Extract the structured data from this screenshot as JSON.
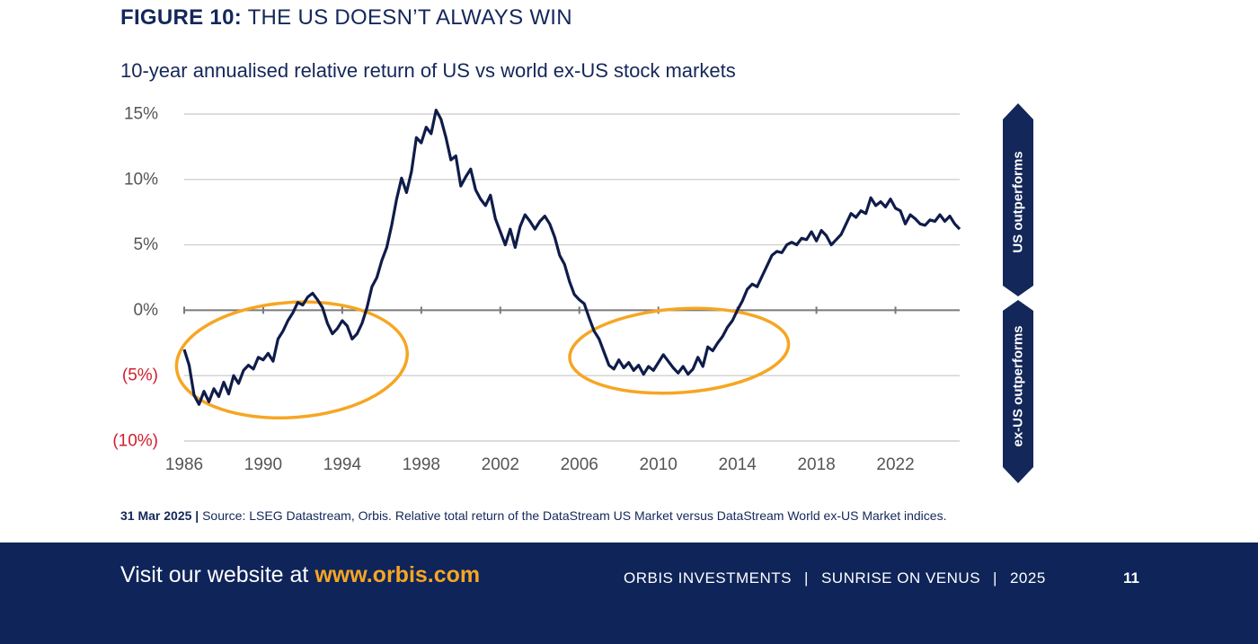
{
  "figure": {
    "number": "FIGURE 10:",
    "title": "THE US DOESN’T ALWAYS WIN",
    "subtitle": "10-year annualised relative return of US vs world ex-US stock markets"
  },
  "colors": {
    "navy": "#14275a",
    "line": "#0f1c4a",
    "grid": "#d0d0d0",
    "negative_label": "#d0202e",
    "highlight": "#f6a623",
    "footer_bg": "#0f2459"
  },
  "side_labels": {
    "up": "US outperforms",
    "down": "ex-US outperforms"
  },
  "chart_data": {
    "type": "line",
    "title": "10-year annualised relative return of US vs world ex-US stock markets",
    "xlabel": "",
    "ylabel": "",
    "xlim": [
      1986,
      2025.25
    ],
    "ylim": [
      -10,
      15
    ],
    "x_ticks": [
      1986,
      1990,
      1994,
      1998,
      2002,
      2006,
      2010,
      2014,
      2018,
      2022
    ],
    "x_tick_labels": [
      "1986",
      "1990",
      "1994",
      "1998",
      "2002",
      "2006",
      "2010",
      "2014",
      "2018",
      "2022"
    ],
    "y_ticks": [
      15,
      10,
      5,
      0,
      -5,
      -10
    ],
    "y_tick_labels": [
      "15%",
      "10%",
      "5%",
      "0%",
      "(5%)",
      "(10%)"
    ],
    "grid": true,
    "highlights": [
      {
        "x_range": [
          1985.6,
          1997.3
        ],
        "y_range": [
          -8.2,
          0.6
        ]
      },
      {
        "x_range": [
          2005.5,
          2016.6
        ],
        "y_range": [
          -6.3,
          0.1
        ]
      }
    ],
    "series": [
      {
        "values": [
          [
            1986.0,
            -3.0
          ],
          [
            1986.25,
            -4.2
          ],
          [
            1986.5,
            -6.5
          ],
          [
            1986.75,
            -7.2
          ],
          [
            1987.0,
            -6.2
          ],
          [
            1987.25,
            -7.0
          ],
          [
            1987.5,
            -6.0
          ],
          [
            1987.75,
            -6.6
          ],
          [
            1988.0,
            -5.5
          ],
          [
            1988.25,
            -6.4
          ],
          [
            1988.5,
            -5.0
          ],
          [
            1988.75,
            -5.6
          ],
          [
            1989.0,
            -4.6
          ],
          [
            1989.25,
            -4.2
          ],
          [
            1989.5,
            -4.5
          ],
          [
            1989.75,
            -3.6
          ],
          [
            1990.0,
            -3.8
          ],
          [
            1990.25,
            -3.3
          ],
          [
            1990.5,
            -3.9
          ],
          [
            1990.75,
            -2.2
          ],
          [
            1991.0,
            -1.6
          ],
          [
            1991.25,
            -0.8
          ],
          [
            1991.5,
            -0.2
          ],
          [
            1991.75,
            0.6
          ],
          [
            1992.0,
            0.4
          ],
          [
            1992.25,
            1.0
          ],
          [
            1992.5,
            1.3
          ],
          [
            1992.75,
            0.8
          ],
          [
            1993.0,
            0.2
          ],
          [
            1993.25,
            -1.0
          ],
          [
            1993.5,
            -1.8
          ],
          [
            1993.75,
            -1.4
          ],
          [
            1994.0,
            -0.8
          ],
          [
            1994.25,
            -1.2
          ],
          [
            1994.5,
            -2.2
          ],
          [
            1994.75,
            -1.8
          ],
          [
            1995.0,
            -1.0
          ],
          [
            1995.25,
            0.2
          ],
          [
            1995.5,
            1.8
          ],
          [
            1995.75,
            2.5
          ],
          [
            1996.0,
            3.8
          ],
          [
            1996.25,
            4.8
          ],
          [
            1996.5,
            6.5
          ],
          [
            1996.75,
            8.5
          ],
          [
            1997.0,
            10.1
          ],
          [
            1997.25,
            9.0
          ],
          [
            1997.5,
            10.6
          ],
          [
            1997.75,
            13.2
          ],
          [
            1998.0,
            12.8
          ],
          [
            1998.25,
            14.0
          ],
          [
            1998.5,
            13.5
          ],
          [
            1998.75,
            15.3
          ],
          [
            1999.0,
            14.6
          ],
          [
            1999.25,
            13.2
          ],
          [
            1999.5,
            11.5
          ],
          [
            1999.75,
            11.8
          ],
          [
            2000.0,
            9.5
          ],
          [
            2000.25,
            10.2
          ],
          [
            2000.5,
            10.8
          ],
          [
            2000.75,
            9.2
          ],
          [
            2001.0,
            8.5
          ],
          [
            2001.25,
            8.0
          ],
          [
            2001.5,
            8.8
          ],
          [
            2001.75,
            7.0
          ],
          [
            2002.0,
            6.0
          ],
          [
            2002.25,
            5.0
          ],
          [
            2002.5,
            6.2
          ],
          [
            2002.75,
            4.8
          ],
          [
            2003.0,
            6.4
          ],
          [
            2003.25,
            7.3
          ],
          [
            2003.5,
            6.8
          ],
          [
            2003.75,
            6.2
          ],
          [
            2004.0,
            6.8
          ],
          [
            2004.25,
            7.2
          ],
          [
            2004.5,
            6.6
          ],
          [
            2004.75,
            5.6
          ],
          [
            2005.0,
            4.2
          ],
          [
            2005.25,
            3.5
          ],
          [
            2005.5,
            2.2
          ],
          [
            2005.75,
            1.2
          ],
          [
            2006.0,
            0.8
          ],
          [
            2006.25,
            0.5
          ],
          [
            2006.5,
            -0.6
          ],
          [
            2006.75,
            -1.6
          ],
          [
            2007.0,
            -2.2
          ],
          [
            2007.25,
            -3.2
          ],
          [
            2007.5,
            -4.2
          ],
          [
            2007.75,
            -4.5
          ],
          [
            2008.0,
            -3.8
          ],
          [
            2008.25,
            -4.4
          ],
          [
            2008.5,
            -4.0
          ],
          [
            2008.75,
            -4.6
          ],
          [
            2009.0,
            -4.2
          ],
          [
            2009.25,
            -4.9
          ],
          [
            2009.5,
            -4.3
          ],
          [
            2009.75,
            -4.6
          ],
          [
            2010.0,
            -4.0
          ],
          [
            2010.25,
            -3.4
          ],
          [
            2010.5,
            -3.9
          ],
          [
            2010.75,
            -4.4
          ],
          [
            2011.0,
            -4.8
          ],
          [
            2011.25,
            -4.3
          ],
          [
            2011.5,
            -4.9
          ],
          [
            2011.75,
            -4.5
          ],
          [
            2012.0,
            -3.6
          ],
          [
            2012.25,
            -4.3
          ],
          [
            2012.5,
            -2.8
          ],
          [
            2012.75,
            -3.1
          ],
          [
            2013.0,
            -2.5
          ],
          [
            2013.25,
            -2.0
          ],
          [
            2013.5,
            -1.3
          ],
          [
            2013.75,
            -0.8
          ],
          [
            2014.0,
            0.0
          ],
          [
            2014.25,
            0.7
          ],
          [
            2014.5,
            1.6
          ],
          [
            2014.75,
            2.0
          ],
          [
            2015.0,
            1.8
          ],
          [
            2015.25,
            2.6
          ],
          [
            2015.5,
            3.4
          ],
          [
            2015.75,
            4.2
          ],
          [
            2016.0,
            4.5
          ],
          [
            2016.25,
            4.4
          ],
          [
            2016.5,
            5.0
          ],
          [
            2016.75,
            5.2
          ],
          [
            2017.0,
            5.0
          ],
          [
            2017.25,
            5.5
          ],
          [
            2017.5,
            5.4
          ],
          [
            2017.75,
            6.0
          ],
          [
            2018.0,
            5.3
          ],
          [
            2018.25,
            6.1
          ],
          [
            2018.5,
            5.7
          ],
          [
            2018.75,
            5.0
          ],
          [
            2019.0,
            5.4
          ],
          [
            2019.25,
            5.8
          ],
          [
            2019.5,
            6.6
          ],
          [
            2019.75,
            7.4
          ],
          [
            2020.0,
            7.1
          ],
          [
            2020.25,
            7.6
          ],
          [
            2020.5,
            7.4
          ],
          [
            2020.75,
            8.6
          ],
          [
            2021.0,
            8.0
          ],
          [
            2021.25,
            8.3
          ],
          [
            2021.5,
            7.9
          ],
          [
            2021.75,
            8.5
          ],
          [
            2022.0,
            7.8
          ],
          [
            2022.25,
            7.6
          ],
          [
            2022.5,
            6.6
          ],
          [
            2022.75,
            7.3
          ],
          [
            2023.0,
            7.0
          ],
          [
            2023.25,
            6.6
          ],
          [
            2023.5,
            6.5
          ],
          [
            2023.75,
            6.9
          ],
          [
            2024.0,
            6.8
          ],
          [
            2024.25,
            7.3
          ],
          [
            2024.5,
            6.8
          ],
          [
            2024.75,
            7.2
          ],
          [
            2025.0,
            6.6
          ],
          [
            2025.25,
            6.2
          ]
        ]
      }
    ]
  },
  "source_note": {
    "date": "31 Mar 2025 |",
    "text": "Source: LSEG Datastream, Orbis. Relative total return of the DataStream US Market versus DataStream World ex-US Market indices."
  },
  "footer": {
    "visit_prefix": "Visit our website at",
    "url": "www.orbis.com",
    "company": "ORBIS INVESTMENTS",
    "publication": "SUNRISE ON VENUS",
    "year": "2025",
    "separator": "|",
    "page_number": "11"
  }
}
